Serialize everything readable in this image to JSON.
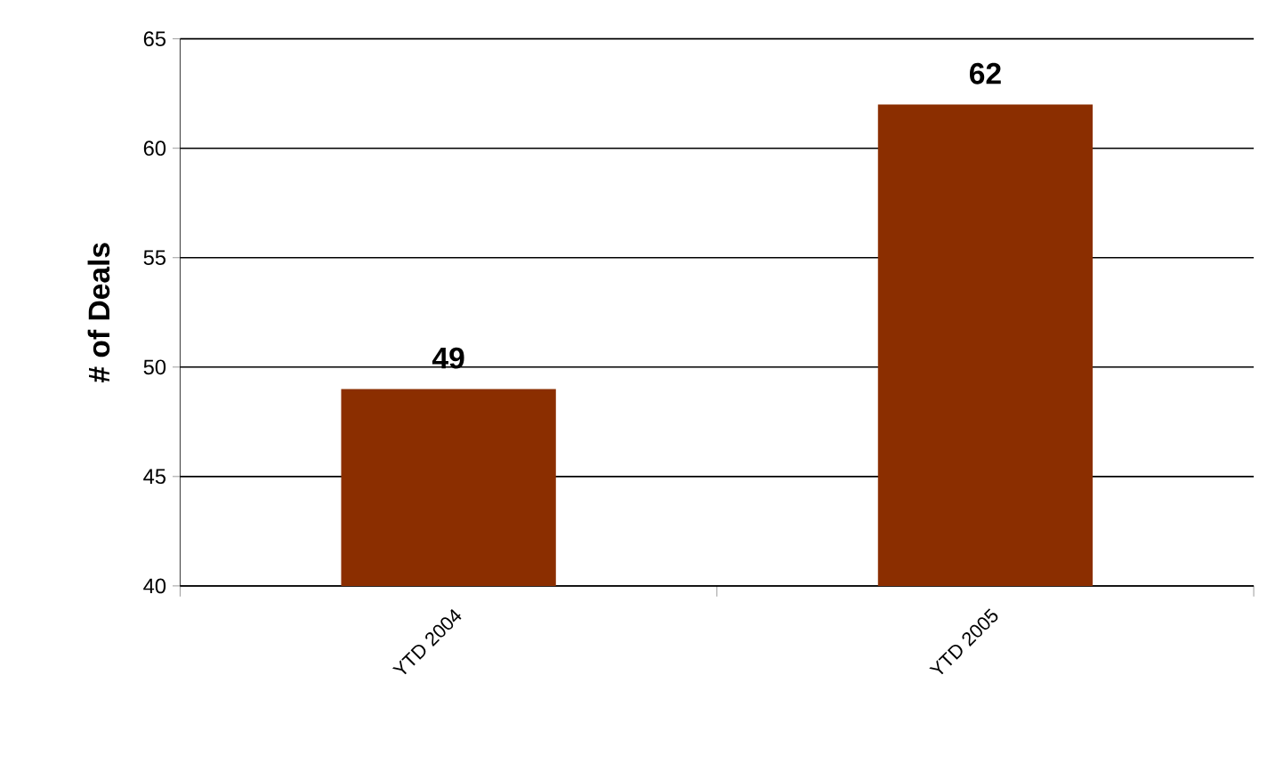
{
  "chart_data": {
    "type": "bar",
    "ylabel": "# of Deals",
    "categories": [
      "YTD 2004",
      "YTD 2005"
    ],
    "values": [
      49,
      62
    ],
    "color": "#8b2e00",
    "ylim": [
      40,
      65
    ],
    "yticks": [
      40,
      45,
      50,
      55,
      60,
      65
    ],
    "grid": "y",
    "data_labels": true
  }
}
